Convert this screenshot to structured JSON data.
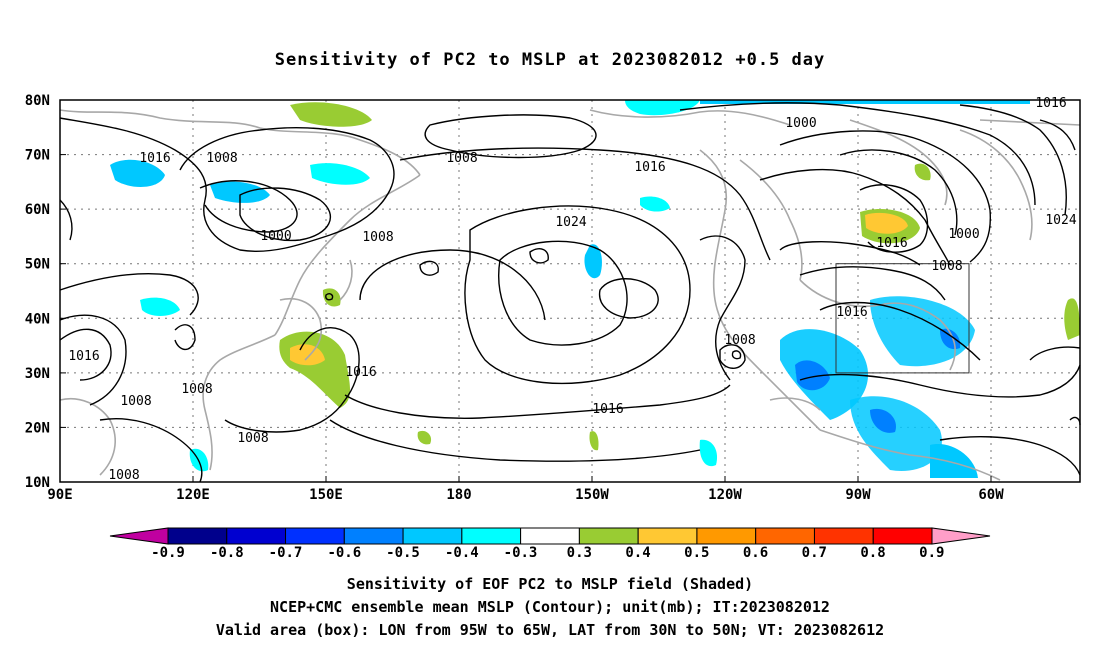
{
  "title": "Sensitivity of PC2 to MSLP at 2023082012 +0.5 day",
  "map": {
    "lat_ticks": [
      "80N",
      "70N",
      "60N",
      "50N",
      "40N",
      "30N",
      "20N",
      "10N"
    ],
    "lon_ticks": [
      "90E",
      "120E",
      "150E",
      "180",
      "150W",
      "120W",
      "90W",
      "60W"
    ],
    "valid_box": {
      "lon_from": "95W",
      "lon_to": "65W",
      "lat_from": "30N",
      "lat_to": "50N"
    },
    "contour_labels": [
      {
        "id": "c1",
        "text": "1016"
      },
      {
        "id": "c2",
        "text": "1008"
      },
      {
        "id": "c3",
        "text": "1008"
      },
      {
        "id": "c4",
        "text": "1016"
      },
      {
        "id": "c5",
        "text": "1000"
      },
      {
        "id": "c6",
        "text": "1008"
      },
      {
        "id": "c7",
        "text": "1024"
      },
      {
        "id": "c8",
        "text": "1000"
      },
      {
        "id": "c9",
        "text": "1016"
      },
      {
        "id": "c10",
        "text": "1016"
      },
      {
        "id": "c11",
        "text": "1000"
      },
      {
        "id": "c12",
        "text": "1008"
      },
      {
        "id": "c13",
        "text": "1024"
      },
      {
        "id": "c14",
        "text": "1016"
      },
      {
        "id": "c15",
        "text": "1008"
      },
      {
        "id": "c16",
        "text": "1016"
      },
      {
        "id": "c17",
        "text": "1008"
      },
      {
        "id": "c18",
        "text": "1008"
      },
      {
        "id": "c19",
        "text": "1008"
      },
      {
        "id": "c20",
        "text": "1016"
      },
      {
        "id": "c21",
        "text": "1016"
      },
      {
        "id": "c22",
        "text": "1008"
      }
    ]
  },
  "colorbar": {
    "labels": [
      "-0.9",
      "-0.8",
      "-0.7",
      "-0.6",
      "-0.5",
      "-0.4",
      "-0.3",
      "0.3",
      "0.4",
      "0.5",
      "0.6",
      "0.7",
      "0.8",
      "0.9"
    ],
    "colors": [
      "#c000a0",
      "#00008c",
      "#0000d0",
      "#0030ff",
      "#0080ff",
      "#00c8ff",
      "#00ffff",
      "#ffffff",
      "#99cc33",
      "#ffc833",
      "#ff9900",
      "#ff6600",
      "#ff3300",
      "#ff0000",
      "#ff9ec8"
    ]
  },
  "footer": {
    "line1": "Sensitivity of EOF PC2 to MSLP field (Shaded)",
    "line2": "NCEP+CMC ensemble mean MSLP (Contour); unit(mb); IT:2023082012",
    "line3": "Valid area (box): LON from 95W to 65W, LAT from 30N to 50N; VT: 2023082612"
  }
}
